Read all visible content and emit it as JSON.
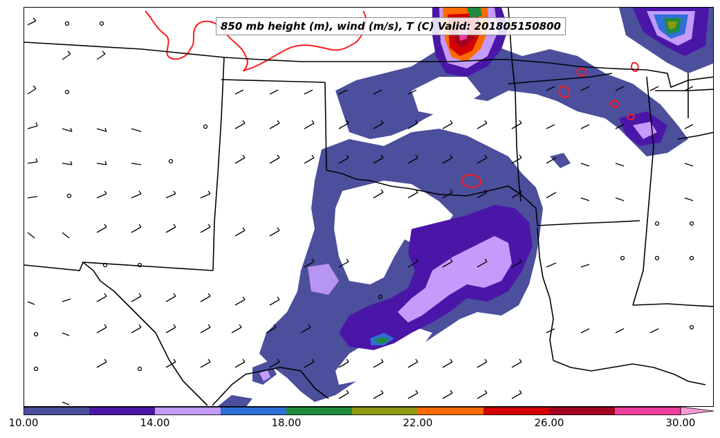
{
  "title": "850 mb height (m), wind (m/s), T (C) Valid: 201805150800",
  "colorbar": {
    "colors": [
      "#4b4f9c",
      "#4a16a8",
      "#c49bfb",
      "#2e6fd8",
      "#1f8a3e",
      "#8f9a10",
      "#ff6a00",
      "#d40000",
      "#a40022",
      "#ee3fa0",
      "#f59ad4"
    ],
    "tick_labels": [
      "10.00",
      "14.00",
      "18.00",
      "22.00",
      "26.00",
      "30.00"
    ],
    "tick_values": [
      10,
      14,
      18,
      22,
      26,
      30
    ],
    "range": [
      10,
      31
    ]
  },
  "map": {
    "border_color": "#000000",
    "contour_color": "#ff1a1a",
    "wind_barb_color": "#000000"
  }
}
